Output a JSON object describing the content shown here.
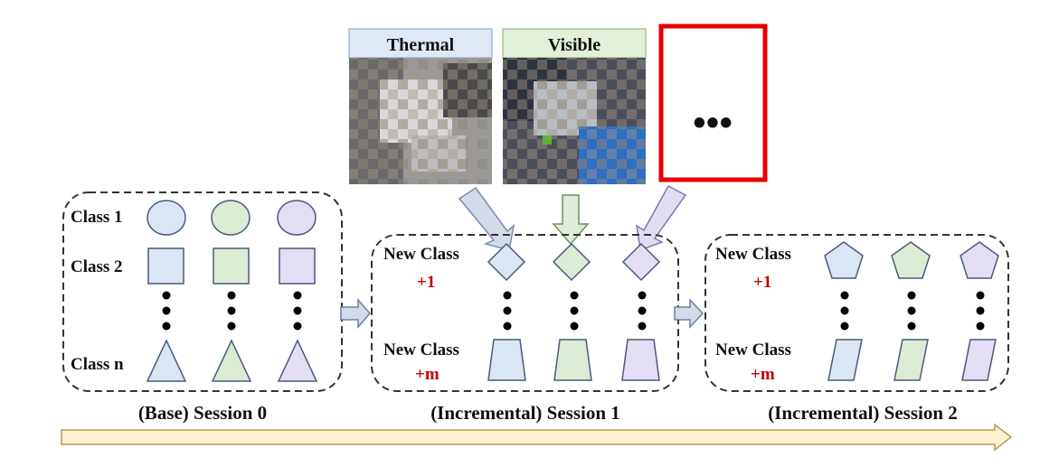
{
  "top_panels": {
    "thermal_label": "Thermal",
    "visible_label": "Visible",
    "more_label": "•••"
  },
  "session0": {
    "caption": "(Base) Session 0",
    "class1_label": "Class 1",
    "class2_label": "Class 2",
    "classn_label": "Class n"
  },
  "session1": {
    "caption": "(Incremental) Session 1",
    "new_class_label_top": "New Class",
    "plus1": "+1",
    "new_class_label_bottom": "New Class",
    "plusm": "+m"
  },
  "session2": {
    "caption": "(Incremental) Session 2",
    "new_class_label_top": "New Class",
    "plus1": "+1",
    "new_class_label_bottom": "New Class",
    "plusm": "+m"
  },
  "colors": {
    "blue_fill": "#dbe6f4",
    "green_fill": "#dcebd4",
    "purple_fill": "#e3def3",
    "shape_stroke": "#4a5a7a",
    "plus_red": "#c00000",
    "highlight_red": "#e60000",
    "thermal_header": "#dfe9f6",
    "visible_header": "#e2efd9",
    "timeline_fill": "#fdf1cf",
    "timeline_stroke": "#b89a55",
    "arrow_fill": "#d3dbea"
  }
}
